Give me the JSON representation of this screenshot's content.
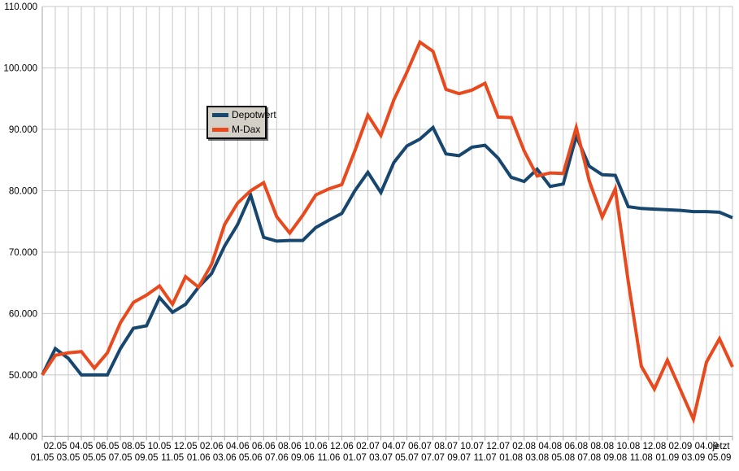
{
  "window": {
    "background": "#FFFFFF"
  },
  "legend": {
    "background": "#D4D0C8",
    "border_color": "#000000",
    "items": [
      {
        "label": "Depotwert",
        "color": "#17466F"
      },
      {
        "label": "M-Dax",
        "color": "#E8491D"
      }
    ]
  },
  "chart_data": {
    "type": "line",
    "title": "",
    "xlabel": "",
    "ylabel": "",
    "grid": true,
    "gridline_color": "#C8C8C8",
    "axis_color": "#A6A6A6",
    "legend_position": "inside-upper-left",
    "ylim": [
      40000,
      110000
    ],
    "y_ticks": {
      "values": [
        110000,
        100000,
        90000,
        80000,
        70000,
        60000,
        50000,
        40000
      ],
      "labels": [
        "110.000",
        "100.000",
        "90.000",
        "80.000",
        "70.000",
        "60.000",
        "50.000",
        "40.000"
      ]
    },
    "categories": [
      "01.05",
      "02.05",
      "03.05",
      "04.05",
      "05.05",
      "06.05",
      "07.05",
      "08.05",
      "09.05",
      "10.05",
      "11.05",
      "12.05",
      "01.06",
      "02.06",
      "03.06",
      "04.06",
      "05.06",
      "06.06",
      "07.06",
      "08.06",
      "09.06",
      "10.06",
      "11.06",
      "12.06",
      "01.07",
      "02.07",
      "03.07",
      "04.07",
      "05.07",
      "06.07",
      "07.07",
      "08.07",
      "09.07",
      "10.07",
      "11.07",
      "12.07",
      "01.08",
      "02.08",
      "03.08",
      "04.08",
      "05.08",
      "06.08",
      "07.08",
      "08.08",
      "09.08",
      "10.08",
      "11.08",
      "12.08",
      "01.09",
      "02.09",
      "03.09",
      "04.09",
      "05.09",
      "jetzt"
    ],
    "series": [
      {
        "name": "Depotwert",
        "color": "#17466F",
        "values": [
          50000,
          54300,
          52700,
          50000,
          50000,
          50000,
          54300,
          57600,
          58000,
          62600,
          60200,
          61500,
          64300,
          66500,
          71000,
          74500,
          79300,
          72400,
          71800,
          71900,
          71900,
          74000,
          75200,
          76300,
          80000,
          83000,
          79700,
          84600,
          87300,
          88400,
          90300,
          86000,
          85700,
          87100,
          87400,
          85300,
          82200,
          81500,
          83500,
          80700,
          81100,
          88900,
          84000,
          82600,
          82500,
          77400,
          77100,
          77000,
          76900,
          76800,
          76600,
          76600,
          76500,
          75600
        ]
      },
      {
        "name": "M-Dax",
        "color": "#E8491D",
        "values": [
          50000,
          53200,
          53600,
          53800,
          51100,
          53600,
          58500,
          61800,
          63000,
          64500,
          61500,
          66000,
          64300,
          68000,
          74500,
          78000,
          80000,
          81300,
          75800,
          73100,
          76000,
          79300,
          80300,
          81000,
          86500,
          92300,
          89000,
          94800,
          99300,
          104200,
          102700,
          96500,
          95800,
          96400,
          97500,
          92000,
          91900,
          86500,
          82400,
          82900,
          82800,
          90300,
          81600,
          75700,
          80300,
          65200,
          51400,
          47700,
          52400,
          47600,
          42800,
          52100,
          55900,
          51300
        ]
      }
    ]
  }
}
